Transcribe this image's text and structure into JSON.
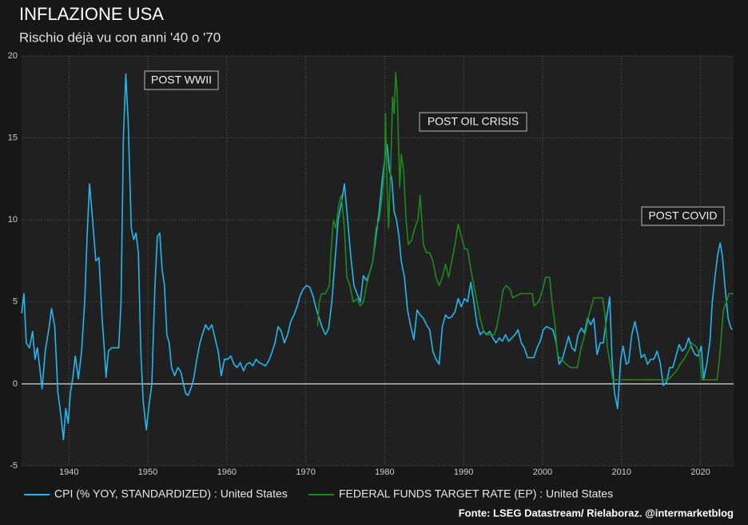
{
  "chart_data": {
    "type": "line",
    "title": "INFLAZIONE USA",
    "subtitle": "Rischio déjà vu con anni '40 o '70",
    "source": "Fonte: LSEG Datastream/ Rielaboraz. @intermarketblog",
    "annotations": [
      "POST WWII",
      "POST OIL CRISIS",
      "POST COVID"
    ],
    "xlim": [
      1934,
      2024.2
    ],
    "xticks": [
      1940,
      1950,
      1960,
      1970,
      1980,
      1990,
      2000,
      2010,
      2020
    ],
    "ylim": [
      -5,
      20
    ],
    "yticks": [
      -5,
      0,
      5,
      10,
      15,
      20
    ],
    "grid": true,
    "series": [
      {
        "name": "CPI (% YOY, STANDARDIZED) : United States",
        "color": "#22b8ee",
        "x": [
          1934.0,
          1934.3,
          1934.6,
          1935.0,
          1935.4,
          1935.7,
          1936.0,
          1936.3,
          1936.6,
          1937.0,
          1937.5,
          1937.8,
          1938.2,
          1938.6,
          1939.0,
          1939.3,
          1939.6,
          1939.9,
          1940.2,
          1940.5,
          1940.8,
          1941.2,
          1941.6,
          1942.0,
          1942.3,
          1942.6,
          1943.0,
          1943.4,
          1943.8,
          1944.2,
          1944.5,
          1944.7,
          1945.0,
          1945.4,
          1945.8,
          1946.3,
          1946.6,
          1946.9,
          1947.2,
          1947.5,
          1947.9,
          1948.2,
          1948.5,
          1948.8,
          1949.1,
          1949.4,
          1949.8,
          1950.1,
          1950.5,
          1950.9,
          1951.2,
          1951.5,
          1951.8,
          1952.1,
          1952.4,
          1952.7,
          1953.0,
          1953.4,
          1953.8,
          1954.2,
          1954.5,
          1954.8,
          1955.1,
          1955.5,
          1955.8,
          1956.2,
          1956.6,
          1956.9,
          1957.3,
          1957.7,
          1958.1,
          1958.5,
          1958.9,
          1959.3,
          1959.7,
          1960.1,
          1960.5,
          1960.9,
          1961.3,
          1961.7,
          1962.1,
          1962.5,
          1962.9,
          1963.3,
          1963.7,
          1964.1,
          1964.5,
          1964.9,
          1965.3,
          1965.7,
          1966.1,
          1966.5,
          1966.9,
          1967.3,
          1967.7,
          1968.1,
          1968.5,
          1968.9,
          1969.3,
          1969.7,
          1970.1,
          1970.5,
          1970.9,
          1971.3,
          1971.7,
          1972.1,
          1972.5,
          1972.9,
          1973.3,
          1973.7,
          1974.1,
          1974.5,
          1974.9,
          1975.3,
          1975.7,
          1976.1,
          1976.5,
          1976.9,
          1977.3,
          1977.7,
          1978.1,
          1978.5,
          1978.9,
          1979.3,
          1979.7,
          1980.1,
          1980.3,
          1980.6,
          1980.9,
          1981.2,
          1981.5,
          1981.8,
          1982.1,
          1982.5,
          1982.9,
          1983.3,
          1983.7,
          1984.1,
          1984.5,
          1984.9,
          1985.3,
          1985.7,
          1986.1,
          1986.5,
          1986.9,
          1987.3,
          1987.7,
          1988.1,
          1988.5,
          1988.9,
          1989.3,
          1989.7,
          1990.1,
          1990.5,
          1990.9,
          1991.3,
          1991.7,
          1992.1,
          1992.5,
          1992.9,
          1993.3,
          1993.7,
          1994.1,
          1994.5,
          1994.9,
          1995.3,
          1995.7,
          1996.1,
          1996.5,
          1996.9,
          1997.3,
          1997.7,
          1998.1,
          1998.5,
          1998.9,
          1999.3,
          1999.7,
          2000.1,
          2000.5,
          2000.9,
          2001.3,
          2001.7,
          2002.1,
          2002.5,
          2002.9,
          2003.3,
          2003.7,
          2004.1,
          2004.5,
          2004.9,
          2005.3,
          2005.7,
          2006.1,
          2006.5,
          2006.9,
          2007.3,
          2007.7,
          2008.1,
          2008.5,
          2008.8,
          2009.1,
          2009.5,
          2009.9,
          2010.2,
          2010.6,
          2010.9,
          2011.3,
          2011.7,
          2012.1,
          2012.5,
          2012.9,
          2013.3,
          2013.7,
          2014.1,
          2014.5,
          2014.9,
          2015.3,
          2015.7,
          2016.1,
          2016.5,
          2016.9,
          2017.3,
          2017.7,
          2018.1,
          2018.5,
          2018.9,
          2019.3,
          2019.7,
          2020.1,
          2020.4,
          2020.8,
          2021.2,
          2021.5,
          2021.9,
          2022.2,
          2022.5,
          2022.8,
          2023.1,
          2023.5,
          2023.8,
          2024.0
        ],
        "values": [
          4.3,
          5.5,
          2.5,
          2.2,
          3.2,
          1.5,
          2.2,
          1.0,
          -0.3,
          2.0,
          3.5,
          4.6,
          3.5,
          -0.5,
          -2.0,
          -3.4,
          -1.5,
          -2.4,
          -0.5,
          0.4,
          1.7,
          0.3,
          2.0,
          5.0,
          9.0,
          12.2,
          10.0,
          7.5,
          7.7,
          4.0,
          2.0,
          0.4,
          2.0,
          2.2,
          2.2,
          2.2,
          5.0,
          15.0,
          18.9,
          16.0,
          9.5,
          8.8,
          9.2,
          8.0,
          2.0,
          -1.0,
          -2.8,
          -1.5,
          0.0,
          6.0,
          9.0,
          9.2,
          7.0,
          6.0,
          3.0,
          2.5,
          1.0,
          0.5,
          1.0,
          0.7,
          0.0,
          -0.6,
          -0.7,
          -0.2,
          0.3,
          1.5,
          2.5,
          3.0,
          3.6,
          3.3,
          3.6,
          2.8,
          2.0,
          0.5,
          1.5,
          1.5,
          1.7,
          1.2,
          1.0,
          1.3,
          0.8,
          1.2,
          1.3,
          1.1,
          1.5,
          1.3,
          1.2,
          1.1,
          1.4,
          1.9,
          2.5,
          3.5,
          3.2,
          2.5,
          3.0,
          3.8,
          4.2,
          4.7,
          5.4,
          5.8,
          6.0,
          5.9,
          5.4,
          4.6,
          4.0,
          3.4,
          3.0,
          3.4,
          5.0,
          7.5,
          10.0,
          11.0,
          12.2,
          10.0,
          7.8,
          6.0,
          5.5,
          5.0,
          6.6,
          6.3,
          6.8,
          7.5,
          9.0,
          10.5,
          12.5,
          14.0,
          14.6,
          13.0,
          12.5,
          10.5,
          10.0,
          9.0,
          7.5,
          6.5,
          4.5,
          3.5,
          2.7,
          4.5,
          4.2,
          4.0,
          3.6,
          3.3,
          2.0,
          1.5,
          1.2,
          3.5,
          4.2,
          4.0,
          4.1,
          4.4,
          5.2,
          4.7,
          5.2,
          5.0,
          6.2,
          5.0,
          3.6,
          3.0,
          3.2,
          3.0,
          3.2,
          2.8,
          2.5,
          2.8,
          2.6,
          3.0,
          2.6,
          2.8,
          3.0,
          3.3,
          2.5,
          2.2,
          1.6,
          1.6,
          1.6,
          2.2,
          2.6,
          3.3,
          3.5,
          3.4,
          3.3,
          2.6,
          1.2,
          1.5,
          2.2,
          2.9,
          2.2,
          2.0,
          3.0,
          3.4,
          3.1,
          4.0,
          3.6,
          4.0,
          1.8,
          2.5,
          2.5,
          4.0,
          5.3,
          1.5,
          -0.5,
          -1.5,
          1.5,
          2.3,
          1.2,
          1.3,
          3.0,
          3.8,
          2.9,
          1.6,
          1.8,
          1.2,
          1.5,
          1.5,
          2.0,
          1.3,
          -0.1,
          0.1,
          1.0,
          1.0,
          1.7,
          2.4,
          2.0,
          2.2,
          2.8,
          2.2,
          1.8,
          1.7,
          2.3,
          0.3,
          1.2,
          2.6,
          5.0,
          6.8,
          7.9,
          8.6,
          7.7,
          6.0,
          4.0,
          3.5,
          3.3
        ]
      },
      {
        "name": "FEDERAL FUNDS TARGET RATE (EP) : United States",
        "color": "#1c8a1c",
        "x": [
          1971.5,
          1971.7,
          1972.0,
          1972.5,
          1973.0,
          1973.2,
          1973.5,
          1973.8,
          1974.2,
          1974.5,
          1974.9,
          1975.2,
          1975.6,
          1976.0,
          1976.5,
          1976.9,
          1977.3,
          1977.7,
          1978.1,
          1978.5,
          1978.9,
          1979.3,
          1979.7,
          1980.0,
          1980.1,
          1980.3,
          1980.5,
          1980.8,
          1981.0,
          1981.2,
          1981.4,
          1981.6,
          1981.9,
          1982.1,
          1982.4,
          1982.7,
          1983.0,
          1983.4,
          1983.8,
          1984.2,
          1984.5,
          1984.9,
          1985.3,
          1985.7,
          1986.1,
          1986.5,
          1986.9,
          1987.3,
          1987.7,
          1988.1,
          1988.5,
          1988.9,
          1989.3,
          1989.7,
          1990.1,
          1990.5,
          1990.9,
          1991.3,
          1991.7,
          1992.1,
          1992.5,
          1993.0,
          1993.9,
          1994.2,
          1994.6,
          1995.0,
          1995.4,
          1995.9,
          1996.2,
          1997.2,
          1998.7,
          1998.9,
          1999.5,
          2000.0,
          2000.4,
          2000.9,
          2001.2,
          2001.6,
          2001.9,
          2002.9,
          2003.5,
          2004.4,
          2004.9,
          2005.5,
          2005.9,
          2006.5,
          2007.6,
          2007.9,
          2008.2,
          2008.9,
          2015.9,
          2016.9,
          2017.5,
          2017.9,
          2018.5,
          2018.9,
          2019.5,
          2019.9,
          2020.2,
          2022.1,
          2022.4,
          2022.7,
          2022.9,
          2023.3,
          2023.6,
          2024.2
        ],
        "values": [
          3.5,
          5.0,
          5.5,
          5.5,
          6.0,
          8.0,
          10.0,
          9.5,
          11.0,
          11.5,
          9.5,
          6.5,
          6.0,
          5.0,
          5.2,
          4.75,
          5.0,
          6.0,
          6.8,
          7.5,
          9.5,
          10.0,
          11.5,
          13.5,
          16.5,
          12.0,
          9.5,
          14.0,
          17.5,
          16.5,
          19.0,
          17.5,
          12.0,
          14.0,
          13.0,
          10.0,
          8.5,
          8.75,
          9.5,
          10.0,
          11.5,
          8.5,
          8.0,
          8.0,
          7.5,
          6.5,
          6.0,
          6.5,
          7.3,
          6.5,
          7.5,
          8.5,
          9.75,
          9.0,
          8.25,
          8.2,
          7.0,
          6.0,
          5.0,
          4.0,
          3.25,
          3.0,
          3.0,
          3.5,
          4.5,
          5.75,
          6.0,
          5.75,
          5.25,
          5.5,
          5.5,
          4.75,
          5.0,
          5.75,
          6.5,
          6.5,
          5.0,
          3.5,
          1.75,
          1.25,
          1.0,
          1.0,
          2.25,
          3.25,
          4.25,
          5.25,
          5.25,
          4.25,
          2.25,
          0.25,
          0.25,
          0.75,
          1.25,
          1.5,
          2.0,
          2.5,
          2.25,
          1.75,
          0.25,
          0.25,
          1.5,
          3.25,
          4.5,
          5.0,
          5.5,
          5.5
        ]
      }
    ]
  }
}
